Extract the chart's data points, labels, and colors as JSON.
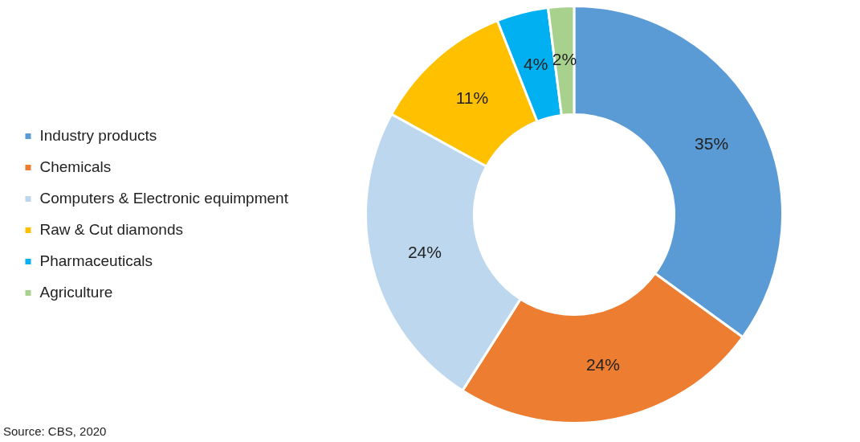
{
  "chart_data": {
    "type": "donut",
    "categories": [
      "Industry products",
      "Chemicals",
      "Computers & Electronic equimpment",
      "Raw & Cut diamonds",
      "Pharmaceuticals",
      "Agriculture"
    ],
    "values": [
      35,
      24,
      24,
      11,
      4,
      2
    ],
    "value_labels": [
      "35%",
      "24%",
      "24%",
      "11%",
      "4%",
      "2%"
    ],
    "colors": [
      "#5b9bd5",
      "#ed7d31",
      "#bdd7ee",
      "#ffc000",
      "#00b0f0",
      "#a9d18e"
    ],
    "legend": "left",
    "annotations": [
      "Source: CBS, 2020"
    ]
  }
}
